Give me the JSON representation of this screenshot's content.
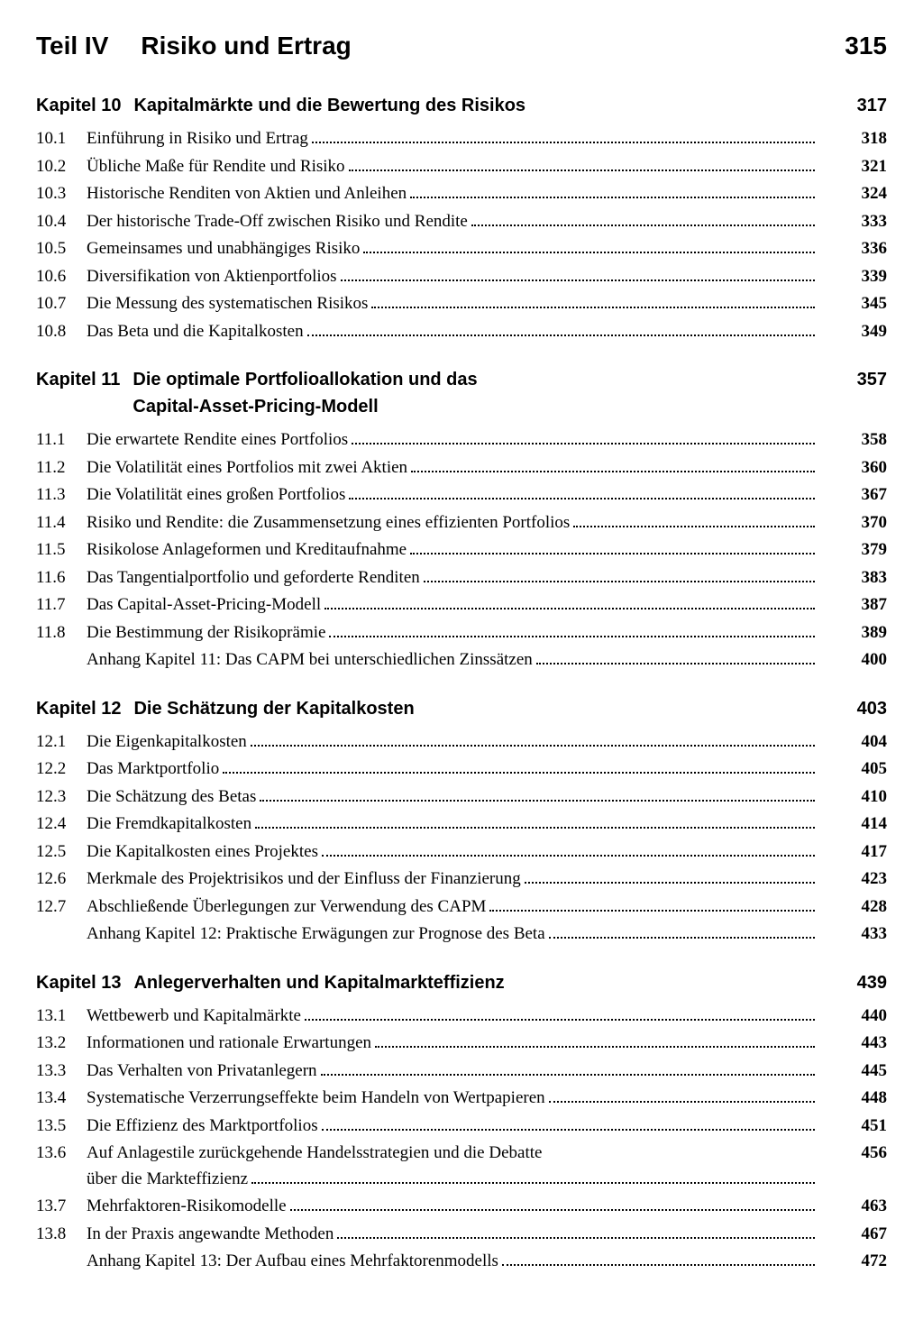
{
  "part": {
    "label": "Teil IV",
    "title": "Risiko und Ertrag",
    "page": "315"
  },
  "chapters": [
    {
      "num": "Kapitel 10",
      "title": "Kapitalmärkte und die Bewertung des Risikos",
      "page": "317",
      "sections": [
        {
          "num": "10.1",
          "title": "Einführung in Risiko und Ertrag",
          "page": "318"
        },
        {
          "num": "10.2",
          "title": "Übliche Maße für Rendite und Risiko",
          "page": "321"
        },
        {
          "num": "10.3",
          "title": "Historische Renditen von Aktien und Anleihen",
          "page": "324"
        },
        {
          "num": "10.4",
          "title": "Der historische Trade-Off zwischen Risiko und Rendite",
          "page": "333"
        },
        {
          "num": "10.5",
          "title": "Gemeinsames und unabhängiges Risiko",
          "page": "336"
        },
        {
          "num": "10.6",
          "title": "Diversifikation von Aktienportfolios",
          "page": "339"
        },
        {
          "num": "10.7",
          "title": "Die Messung des systematischen Risikos",
          "page": "345"
        },
        {
          "num": "10.8",
          "title": "Das Beta und die Kapitalkosten",
          "page": "349"
        }
      ]
    },
    {
      "num": "Kapitel 11",
      "title": "Die optimale Portfolioallokation und das Capital-Asset-Pricing-Modell",
      "title_line1": "Die optimale Portfolioallokation und das",
      "title_line2": "Capital-Asset-Pricing-Modell",
      "page": "357",
      "sections": [
        {
          "num": "11.1",
          "title": "Die erwartete Rendite eines Portfolios",
          "page": "358"
        },
        {
          "num": "11.2",
          "title": "Die Volatilität eines Portfolios mit zwei Aktien",
          "page": "360"
        },
        {
          "num": "11.3",
          "title": "Die Volatilität eines großen Portfolios",
          "page": "367"
        },
        {
          "num": "11.4",
          "title": "Risiko und Rendite: die Zusammensetzung eines effizienten Portfolios",
          "page": "370"
        },
        {
          "num": "11.5",
          "title": "Risikolose Anlageformen und Kreditaufnahme",
          "page": "379"
        },
        {
          "num": "11.6",
          "title": "Das Tangentialportfolio und geforderte Renditen",
          "page": "383"
        },
        {
          "num": "11.7",
          "title": "Das Capital-Asset-Pricing-Modell",
          "page": "387"
        },
        {
          "num": "11.8",
          "title": "Die Bestimmung der Risikoprämie",
          "page": "389"
        },
        {
          "num": "",
          "title": "Anhang Kapitel 11: Das CAPM bei unterschiedlichen Zinssätzen",
          "page": "400"
        }
      ]
    },
    {
      "num": "Kapitel 12",
      "title": "Die Schätzung der Kapitalkosten",
      "page": "403",
      "sections": [
        {
          "num": "12.1",
          "title": "Die Eigenkapitalkosten",
          "page": "404"
        },
        {
          "num": "12.2",
          "title": "Das Marktportfolio",
          "page": "405"
        },
        {
          "num": "12.3",
          "title": "Die Schätzung des Betas",
          "page": "410"
        },
        {
          "num": "12.4",
          "title": "Die Fremdkapitalkosten",
          "page": "414"
        },
        {
          "num": "12.5",
          "title": "Die Kapitalkosten eines Projektes",
          "page": "417"
        },
        {
          "num": "12.6",
          "title": "Merkmale des Projektrisikos und der Einfluss der Finanzierung",
          "page": "423"
        },
        {
          "num": "12.7",
          "title": "Abschließende Überlegungen zur Verwendung des CAPM",
          "page": "428"
        },
        {
          "num": "",
          "title": "Anhang Kapitel 12: Praktische Erwägungen zur Prognose des Beta",
          "page": "433"
        }
      ]
    },
    {
      "num": "Kapitel 13",
      "title": "Anlegerverhalten und Kapitalmarkteffizienz",
      "page": "439",
      "sections": [
        {
          "num": "13.1",
          "title": "Wettbewerb und Kapitalmärkte",
          "page": "440"
        },
        {
          "num": "13.2",
          "title": "Informationen und rationale Erwartungen",
          "page": "443"
        },
        {
          "num": "13.3",
          "title": "Das Verhalten von Privatanlegern",
          "page": "445"
        },
        {
          "num": "13.4",
          "title": "Systematische Verzerrungseffekte beim Handeln von Wertpapieren",
          "page": "448"
        },
        {
          "num": "13.5",
          "title": "Die Effizienz des Marktportfolios",
          "page": "451"
        },
        {
          "num": "13.6",
          "title_line1": "Auf Anlagestile zurückgehende Handelsstrategien und die Debatte",
          "title_line2": "über die Markteffizienz",
          "page": "456",
          "multiline": true
        },
        {
          "num": "13.7",
          "title": "Mehrfaktoren-Risikomodelle",
          "page": "463"
        },
        {
          "num": "13.8",
          "title": "In der Praxis angewandte Methoden",
          "page": "467"
        },
        {
          "num": "",
          "title": "Anhang Kapitel 13: Der Aufbau eines Mehrfaktorenmodells",
          "page": "472"
        }
      ]
    }
  ]
}
